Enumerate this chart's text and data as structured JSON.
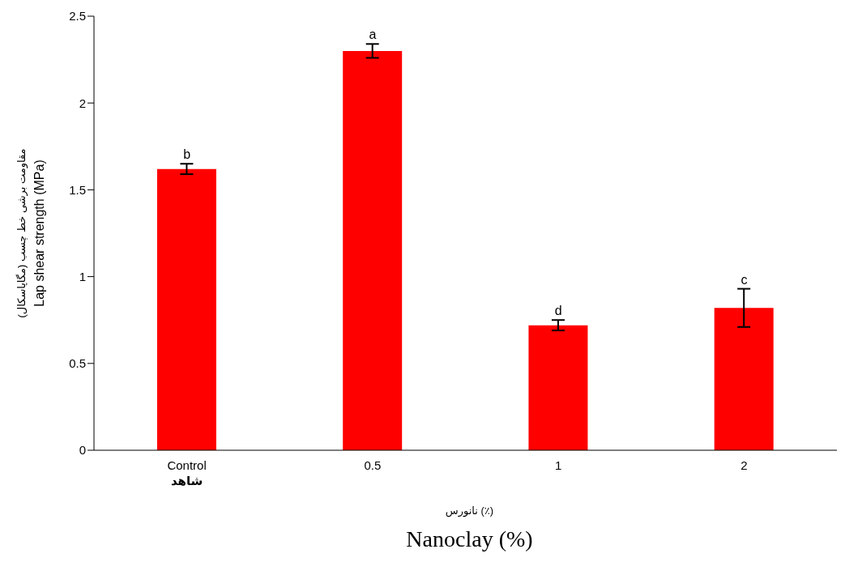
{
  "chart_data": {
    "type": "bar",
    "categories": [
      "Control\nشاهد",
      "0.5",
      "1",
      "2"
    ],
    "values": [
      1.62,
      2.3,
      0.72,
      0.82
    ],
    "errors": [
      0.03,
      0.04,
      0.03,
      0.11
    ],
    "color": "#ff0000",
    "xlabel": "نانورس (٪)\nNanoclay (%)",
    "ylabel": "مقاومت برشی خط چسب (مگاپاسکال)\nLap shear strength (MPa)",
    "ylim": [
      0,
      2.5
    ],
    "yticks": [
      0,
      0.5,
      1,
      1.5,
      2,
      2.5
    ],
    "grid": false,
    "legend": false,
    "annotations": [
      "b",
      "a",
      "d",
      "c"
    ]
  }
}
